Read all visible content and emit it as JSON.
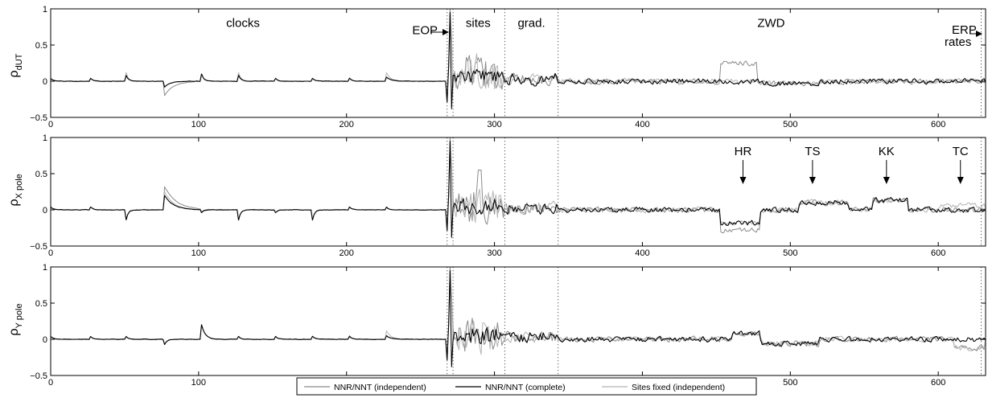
{
  "chart_data": {
    "type": "line",
    "panels": [
      {
        "id": "dUT",
        "ylabel_main": "ρ",
        "ylabel_sub": "dUT",
        "xlim": [
          0,
          632
        ],
        "ylim": [
          -0.5,
          1
        ],
        "xticks": [
          0,
          100,
          200,
          300,
          400,
          500,
          600
        ],
        "yticks": [
          -0.5,
          0,
          0.5,
          1
        ],
        "ytick_labels": [
          "−0.5",
          "0",
          "0.5",
          "1"
        ]
      },
      {
        "id": "Xpole",
        "ylabel_main": "ρ",
        "ylabel_sub": "X pole",
        "xlim": [
          0,
          632
        ],
        "ylim": [
          -0.5,
          1
        ],
        "xticks": [
          0,
          100,
          200,
          300,
          400,
          500,
          600
        ],
        "yticks": [
          -0.5,
          0,
          0.5,
          1
        ],
        "ytick_labels": [
          "−0.5",
          "0",
          "0.5",
          "1"
        ]
      },
      {
        "id": "Ypole",
        "ylabel_main": "ρ",
        "ylabel_sub": "Y pole",
        "xlim": [
          0,
          632
        ],
        "ylim": [
          -0.5,
          1
        ],
        "xticks": [
          0,
          100,
          200,
          300,
          400,
          500,
          600
        ],
        "yticks": [
          -0.5,
          0,
          0.5,
          1
        ],
        "ytick_labels": [
          "−0.5",
          "0",
          "0.5",
          "1"
        ]
      }
    ],
    "section_boundaries": [
      268,
      272,
      307,
      343,
      629
    ],
    "section_labels": [
      {
        "text": "clocks",
        "x": 130,
        "y": 0.75,
        "panel": 0
      },
      {
        "text": "EOP",
        "x": 253,
        "y": 0.65,
        "panel": 0
      },
      {
        "text": "sites",
        "x": 289,
        "y": 0.75,
        "panel": 0
      },
      {
        "text": "grad.",
        "x": 325,
        "y": 0.75,
        "panel": 0
      },
      {
        "text": "ZWD",
        "x": 487,
        "y": 0.75,
        "panel": 0
      },
      {
        "text": "ERP",
        "x": 610,
        "y": 0.2,
        "panel": 0
      },
      {
        "text": "rates",
        "x": 610,
        "y": 0.38,
        "panel": 0
      }
    ],
    "site_annotations": [
      {
        "text": "HR",
        "x": 468
      },
      {
        "text": "TS",
        "x": 515
      },
      {
        "text": "KK",
        "x": 565
      },
      {
        "text": "TC",
        "x": 615
      }
    ],
    "series": [
      {
        "name": "NNR/NNT (independent)",
        "color": "#8a8a8a",
        "width": 1.0
      },
      {
        "name": "NNR/NNT (complete)",
        "color": "#000000",
        "width": 1.1
      },
      {
        "name": "Sites fixed (independent)",
        "color": "#b4b4b4",
        "width": 1.0
      }
    ],
    "legend_position": "bottom-center",
    "grid": false
  }
}
